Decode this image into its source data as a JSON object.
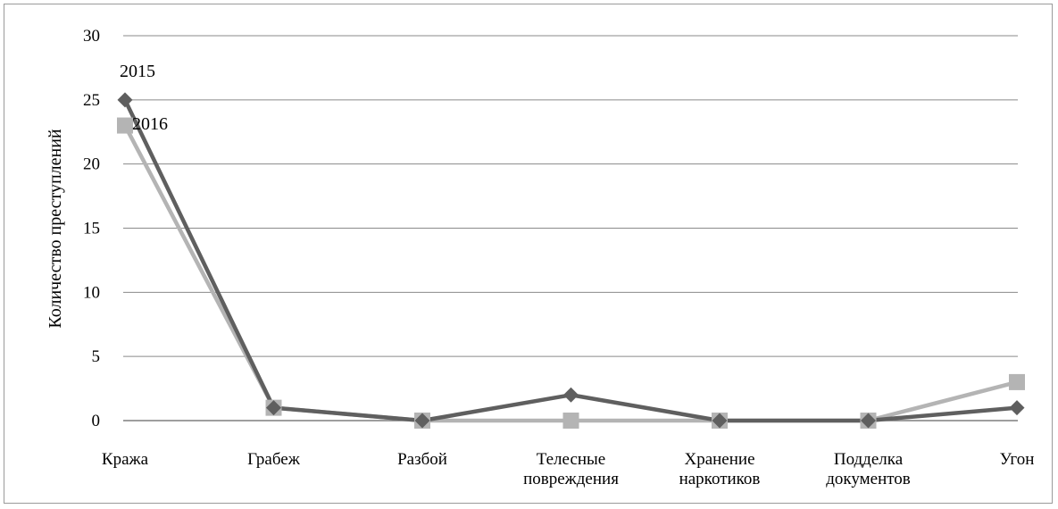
{
  "chart_data": {
    "type": "line",
    "title": "",
    "xlabel": "",
    "ylabel": "Количество преступлений",
    "ylim": [
      0,
      30
    ],
    "yticks": [
      0,
      5,
      10,
      15,
      20,
      25,
      30
    ],
    "grid": true,
    "categories": [
      [
        "Кража"
      ],
      [
        "Грабеж"
      ],
      [
        "Разбой"
      ],
      [
        "Телесные",
        "повреждения"
      ],
      [
        "Хранение",
        "наркотиков"
      ],
      [
        "Подделка",
        "документов"
      ],
      [
        "Угон"
      ]
    ],
    "series": [
      {
        "name": "2015",
        "values": [
          25,
          1,
          0,
          2,
          0,
          0,
          1
        ],
        "color": "#5f5f5f",
        "marker": "diamond"
      },
      {
        "name": "2016",
        "values": [
          23,
          1,
          0,
          0,
          0,
          0,
          3
        ],
        "color": "#b4b4b4",
        "marker": "square"
      }
    ]
  }
}
